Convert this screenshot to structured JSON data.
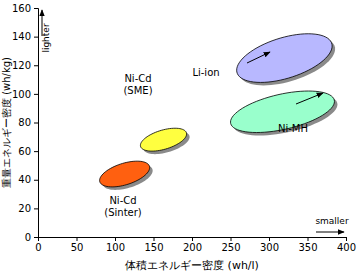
{
  "chart_data": {
    "type": "region",
    "x_label": "体積エネルギー密度 (wh/l)",
    "y_label": "重量エネルギー密度 (wh/kg)",
    "xlim": [
      0,
      400
    ],
    "xticks": [
      0,
      50,
      100,
      150,
      200,
      250,
      300,
      350,
      400
    ],
    "ylim": [
      0,
      160
    ],
    "yticks": [
      0,
      20,
      40,
      60,
      80,
      100,
      120,
      140,
      160
    ],
    "grid": false,
    "series": [
      {
        "name": "Ni-Cd (Sinter)",
        "color": "#ff6010",
        "x": [
          80,
          145
        ],
        "values": [
          35,
          53
        ]
      },
      {
        "name": "Ni-Cd (SME)",
        "color": "#ffff40",
        "x": [
          133,
          193
        ],
        "values": [
          60,
          76
        ]
      },
      {
        "name": "Ni-MH",
        "color": "#99ffcc",
        "x": [
          250,
          385
        ],
        "values": [
          73,
          102
        ]
      },
      {
        "name": "Li-ion",
        "color": "#b8b8ff",
        "x": [
          258,
          382
        ],
        "values": [
          108,
          142
        ]
      }
    ],
    "annotations": [
      "lighter",
      "smaller"
    ]
  }
}
